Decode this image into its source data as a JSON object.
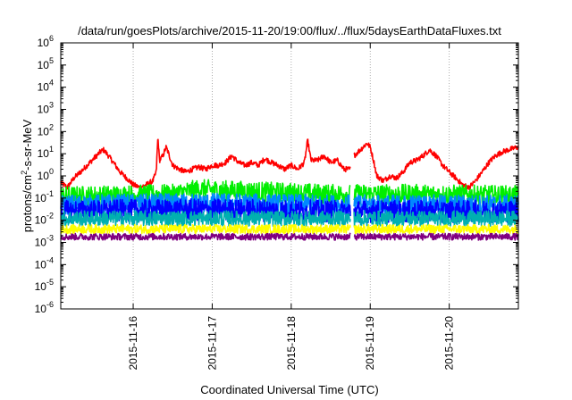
{
  "chart_data": {
    "type": "line",
    "title": "/data/run/goesPlots/archive/2015-11-20/19:00/flux/../flux/5daysEarthDataFluxes.txt",
    "xlabel": "Coordinated Universal Time (UTC)",
    "ylabel": {
      "base": "protons/cm",
      "sup": "2",
      "rest": "-s-sr-MeV"
    },
    "x_type": "datetime",
    "xlim": [
      "2015-11-15 02:00",
      "2015-11-20 21:00"
    ],
    "x_ticks": [
      "2015-11-16",
      "2015-11-17",
      "2015-11-18",
      "2015-11-19",
      "2015-11-20"
    ],
    "y_scale": "log",
    "ylim": [
      1e-06,
      1000000.0
    ],
    "y_ticks": [
      {
        "value": 1e-06,
        "base": "10",
        "exp": "-6"
      },
      {
        "value": 1e-05,
        "base": "10",
        "exp": "-5"
      },
      {
        "value": 0.0001,
        "base": "10",
        "exp": "-4"
      },
      {
        "value": 0.001,
        "base": "10",
        "exp": "-3"
      },
      {
        "value": 0.01,
        "base": "10",
        "exp": "-2"
      },
      {
        "value": 0.1,
        "base": "10",
        "exp": "-1"
      },
      {
        "value": 1,
        "base": "10",
        "exp": "0"
      },
      {
        "value": 10,
        "base": "10",
        "exp": "1"
      },
      {
        "value": 100,
        "base": "10",
        "exp": "2"
      },
      {
        "value": 1000,
        "base": "10",
        "exp": "3"
      },
      {
        "value": 10000,
        "base": "10",
        "exp": "4"
      },
      {
        "value": 100000,
        "base": "10",
        "exp": "5"
      },
      {
        "value": 1000000,
        "base": "10",
        "exp": "6"
      }
    ],
    "grid": {
      "x": true,
      "y": false,
      "style": "dotted"
    },
    "legend": "none",
    "gap": [
      "2015-11-18 18:00",
      "2015-11-18 19:00"
    ],
    "series": [
      {
        "color": "#ff0000",
        "noise": 0.12,
        "points": [
          [
            "2015-11-15 02:00",
            0.5
          ],
          [
            "2015-11-15 04:00",
            0.3
          ],
          [
            "2015-11-15 06:00",
            0.8
          ],
          [
            "2015-11-15 08:00",
            1.5
          ],
          [
            "2015-11-15 10:00",
            3
          ],
          [
            "2015-11-15 12:00",
            6
          ],
          [
            "2015-11-15 14:00",
            12
          ],
          [
            "2015-11-15 15:00",
            15
          ],
          [
            "2015-11-15 16:00",
            10
          ],
          [
            "2015-11-15 18:00",
            4
          ],
          [
            "2015-11-15 20:00",
            1.5
          ],
          [
            "2015-11-15 22:00",
            0.8
          ],
          [
            "2015-11-16 00:00",
            0.4
          ],
          [
            "2015-11-16 02:00",
            0.3
          ],
          [
            "2015-11-16 04:00",
            0.4
          ],
          [
            "2015-11-16 06:00",
            0.6
          ],
          [
            "2015-11-16 07:00",
            1.5
          ],
          [
            "2015-11-16 07:30",
            60
          ],
          [
            "2015-11-16 08:00",
            5
          ],
          [
            "2015-11-16 09:00",
            8
          ],
          [
            "2015-11-16 10:00",
            20
          ],
          [
            "2015-11-16 11:00",
            8
          ],
          [
            "2015-11-16 12:00",
            3
          ],
          [
            "2015-11-16 14:00",
            2
          ],
          [
            "2015-11-16 16:00",
            1.5
          ],
          [
            "2015-11-16 18:00",
            2
          ],
          [
            "2015-11-16 20:00",
            2.5
          ],
          [
            "2015-11-16 22:00",
            2
          ],
          [
            "2015-11-17 00:00",
            3
          ],
          [
            "2015-11-17 02:00",
            3
          ],
          [
            "2015-11-17 04:00",
            4
          ],
          [
            "2015-11-17 06:00",
            8
          ],
          [
            "2015-11-17 08:00",
            4
          ],
          [
            "2015-11-17 10:00",
            3
          ],
          [
            "2015-11-17 12:00",
            4
          ],
          [
            "2015-11-17 14:00",
            3
          ],
          [
            "2015-11-17 16:00",
            6
          ],
          [
            "2015-11-17 18:00",
            4
          ],
          [
            "2015-11-17 20:00",
            3
          ],
          [
            "2015-11-17 22:00",
            2
          ],
          [
            "2015-11-18 00:00",
            3
          ],
          [
            "2015-11-18 02:00",
            2
          ],
          [
            "2015-11-18 04:00",
            4
          ],
          [
            "2015-11-18 05:00",
            40
          ],
          [
            "2015-11-18 06:00",
            5
          ],
          [
            "2015-11-18 08:00",
            5
          ],
          [
            "2015-11-18 10:00",
            8
          ],
          [
            "2015-11-18 12:00",
            4
          ],
          [
            "2015-11-18 14:00",
            5
          ],
          [
            "2015-11-18 16:00",
            2
          ],
          [
            "2015-11-18 18:00",
            2
          ],
          [
            "2015-11-18 19:00",
            8
          ],
          [
            "2015-11-18 21:00",
            15
          ],
          [
            "2015-11-18 23:00",
            30
          ],
          [
            "2015-11-19 00:00",
            20
          ],
          [
            "2015-11-19 01:00",
            5
          ],
          [
            "2015-11-19 02:00",
            1
          ],
          [
            "2015-11-19 04:00",
            0.6
          ],
          [
            "2015-11-19 06:00",
            1
          ],
          [
            "2015-11-19 08:00",
            0.8
          ],
          [
            "2015-11-19 10:00",
            1.5
          ],
          [
            "2015-11-19 12:00",
            4
          ],
          [
            "2015-11-19 14:00",
            5
          ],
          [
            "2015-11-19 16:00",
            8
          ],
          [
            "2015-11-19 18:00",
            15
          ],
          [
            "2015-11-19 20:00",
            8
          ],
          [
            "2015-11-19 22:00",
            3
          ],
          [
            "2015-11-20 00:00",
            1.5
          ],
          [
            "2015-11-20 02:00",
            0.8
          ],
          [
            "2015-11-20 04:00",
            0.4
          ],
          [
            "2015-11-20 06:00",
            0.3
          ],
          [
            "2015-11-20 08:00",
            0.6
          ],
          [
            "2015-11-20 10:00",
            1.5
          ],
          [
            "2015-11-20 12:00",
            4
          ],
          [
            "2015-11-20 14:00",
            8
          ],
          [
            "2015-11-20 16:00",
            12
          ],
          [
            "2015-11-20 18:00",
            15
          ],
          [
            "2015-11-20 21:00",
            20
          ]
        ]
      },
      {
        "color": "#00ee00",
        "noise": 0.45,
        "points": [
          [
            "2015-11-15 02:00",
            0.12
          ],
          [
            "2015-11-16 12:00",
            0.15
          ],
          [
            "2015-11-16 20:00",
            0.25
          ],
          [
            "2015-11-17 12:00",
            0.2
          ],
          [
            "2015-11-18 12:00",
            0.15
          ],
          [
            "2015-11-19 12:00",
            0.15
          ],
          [
            "2015-11-20 21:00",
            0.13
          ]
        ]
      },
      {
        "color": "#0088ff",
        "noise": 0.45,
        "points": [
          [
            "2015-11-15 02:00",
            0.05
          ],
          [
            "2015-11-17 00:00",
            0.06
          ],
          [
            "2015-11-18 12:00",
            0.05
          ],
          [
            "2015-11-20 21:00",
            0.05
          ]
        ]
      },
      {
        "color": "#0000ff",
        "noise": 0.5,
        "points": [
          [
            "2015-11-15 02:00",
            0.025
          ],
          [
            "2015-11-17 00:00",
            0.03
          ],
          [
            "2015-11-18 12:00",
            0.025
          ],
          [
            "2015-11-20 21:00",
            0.025
          ]
        ]
      },
      {
        "color": "#00b0b0",
        "noise": 0.35,
        "points": [
          [
            "2015-11-15 02:00",
            0.012
          ],
          [
            "2015-11-18 00:00",
            0.012
          ],
          [
            "2015-11-20 21:00",
            0.012
          ]
        ]
      },
      {
        "color": "#ffff00",
        "noise": 0.2,
        "points": [
          [
            "2015-11-15 02:00",
            0.004
          ],
          [
            "2015-11-18 00:00",
            0.004
          ],
          [
            "2015-11-20 21:00",
            0.004
          ]
        ]
      },
      {
        "color": "#800080",
        "noise": 0.15,
        "points": [
          [
            "2015-11-15 02:00",
            0.0018
          ],
          [
            "2015-11-18 00:00",
            0.0018
          ],
          [
            "2015-11-20 21:00",
            0.0018
          ]
        ]
      }
    ]
  }
}
